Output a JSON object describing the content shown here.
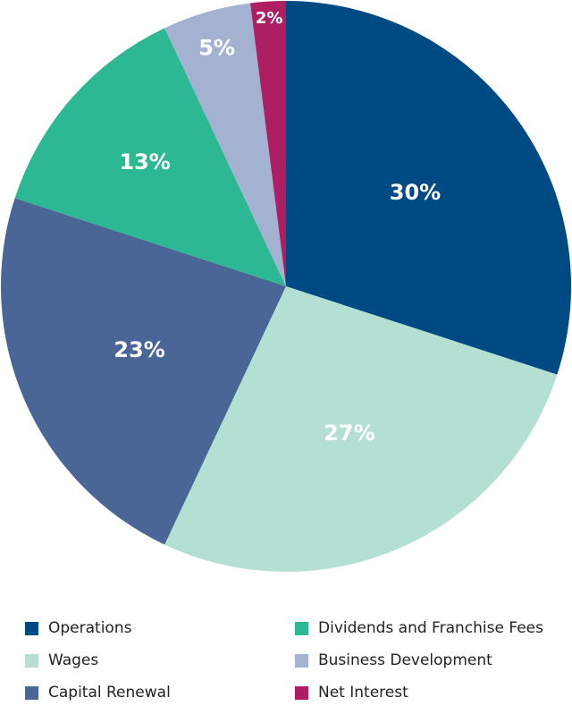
{
  "chart_data": {
    "type": "pie",
    "title": "",
    "start_angle_deg": 0,
    "direction": "clockwise",
    "slices": [
      {
        "label": "Operations",
        "value": 30,
        "display": "30%",
        "color": "#004a84"
      },
      {
        "label": "Wages",
        "value": 27,
        "display": "27%",
        "color": "#b3e0d2"
      },
      {
        "label": "Capital Renewal",
        "value": 23,
        "display": "23%",
        "color": "#4a6696"
      },
      {
        "label": "Dividends and Franchise Fees",
        "value": 13,
        "display": "13%",
        "color": "#2db894"
      },
      {
        "label": "Business Development",
        "value": 5,
        "display": "5%",
        "color": "#a3b2d1"
      },
      {
        "label": "Net Interest",
        "value": 2,
        "display": "2%",
        "color": "#ad1e62"
      }
    ],
    "legend": {
      "placement": "bottom",
      "columns": 2,
      "order": [
        "Operations",
        "Dividends and Franchise Fees",
        "Wages",
        "Business Development",
        "Capital Renewal",
        "Net Interest"
      ]
    }
  }
}
